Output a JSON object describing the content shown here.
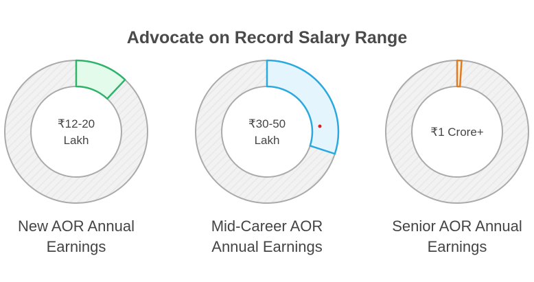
{
  "chart_data": {
    "type": "pie",
    "title": "Advocate on Record Salary Range",
    "charts": [
      {
        "label": "New AOR Annual Earnings",
        "label_lines": [
          "New AOR Annual",
          "Earnings"
        ],
        "center_lines": [
          "₹12-20",
          "Lakh"
        ],
        "fraction": 0.12,
        "color": "#2db36a",
        "fill": "#e2fbea"
      },
      {
        "label": "Mid-Career AOR Annual Earnings",
        "label_lines": [
          "Mid-Career AOR",
          "Annual Earnings"
        ],
        "center_lines": [
          "₹30-50",
          "Lakh"
        ],
        "fraction": 0.3,
        "color": "#2aa9e0",
        "fill": "#e4f5fd"
      },
      {
        "label": "Senior AOR Annual Earnings",
        "label_lines": [
          "Senior AOR Annual",
          "Earnings"
        ],
        "center_lines": [
          "₹1 Crore+"
        ],
        "fraction": 0.01,
        "color": "#e07b20",
        "fill": "#fdeedd"
      }
    ]
  }
}
